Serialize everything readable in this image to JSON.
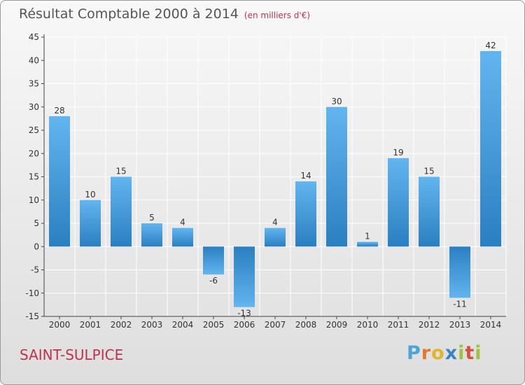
{
  "title": "Résultat Comptable 2000 à 2014",
  "subtitle": "(en milliers d'€)",
  "place": "SAINT-SULPICE",
  "logo": {
    "text": "Proxiti",
    "letters": [
      {
        "ch": "P",
        "color": "#4aa6d8"
      },
      {
        "ch": "r",
        "color": "#e07a2b"
      },
      {
        "ch": "o",
        "color": "#e0b62b"
      },
      {
        "ch": "x",
        "color": "#3b84c6"
      },
      {
        "ch": "i",
        "color": "#9bc43a"
      },
      {
        "ch": "t",
        "color": "#d9513c"
      },
      {
        "ch": "i",
        "color": "#9bc43a"
      }
    ]
  },
  "colors": {
    "bar_light": "#62b5ee",
    "bar_dark": "#2a7fc0",
    "grid": "#ffffff"
  },
  "chart_data": {
    "type": "bar",
    "title": "Résultat Comptable 2000 à 2014",
    "ylabel": "en milliers d'€",
    "xlabel": "",
    "categories": [
      "2000",
      "2001",
      "2002",
      "2003",
      "2004",
      "2005",
      "2006",
      "2007",
      "2008",
      "2009",
      "2010",
      "2011",
      "2012",
      "2013",
      "2014"
    ],
    "values": [
      28,
      10,
      15,
      5,
      4,
      -6,
      -13,
      4,
      14,
      30,
      1,
      19,
      15,
      -11,
      42
    ],
    "value_labels": [
      "28",
      "10",
      "15",
      "5",
      "4",
      "-6",
      "-13",
      "4",
      "14",
      "30",
      "1",
      "19",
      "15",
      "-11",
      "42"
    ],
    "ylim": [
      -15,
      45
    ],
    "yticks": [
      -15,
      -10,
      -5,
      0,
      5,
      10,
      15,
      20,
      25,
      30,
      35,
      40,
      45
    ],
    "grid": true
  }
}
